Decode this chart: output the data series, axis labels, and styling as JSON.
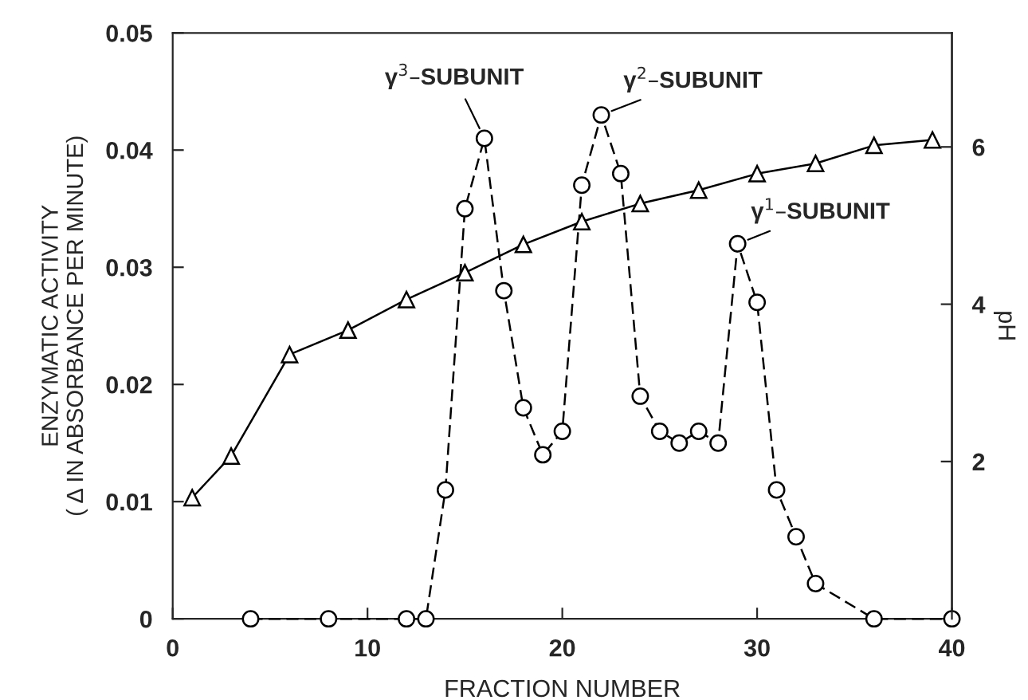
{
  "chart_data": {
    "type": "line",
    "xlabel": "FRACTION NUMBER",
    "ylabel": "ENZYMATIC ACTIVITY\n( Δ IN ABSORBANCE PER MINUTE)",
    "y2label": "pH",
    "xlim": [
      0,
      40
    ],
    "xticks": [
      0,
      10,
      20,
      30,
      40
    ],
    "ylim": [
      0,
      0.05
    ],
    "yticks": [
      0,
      0.01,
      0.02,
      0.03,
      0.04,
      0.05
    ],
    "y2lim": [
      0,
      7.45
    ],
    "y2ticks": [
      2,
      4,
      6
    ],
    "grid": false,
    "legend": false,
    "series": [
      {
        "color": "#000000",
        "marker": "circle",
        "line_style": "dashed",
        "x": [
          4,
          8,
          12,
          13,
          14,
          15,
          16,
          17,
          18,
          19,
          20,
          21,
          22,
          23,
          24,
          25,
          26,
          27,
          28,
          29,
          30,
          31,
          32,
          33,
          36,
          40
        ],
        "values": [
          0,
          0,
          0,
          0,
          0.011,
          0.035,
          0.041,
          0.028,
          0.018,
          0.014,
          0.016,
          0.037,
          0.043,
          0.038,
          0.019,
          0.016,
          0.015,
          0.016,
          0.015,
          0.032,
          0.027,
          0.011,
          0.007,
          0.003,
          0,
          0
        ]
      },
      {
        "color": "#000000",
        "marker": "triangle",
        "line_style": "solid",
        "axis": "y2",
        "x": [
          1,
          3,
          6,
          9,
          12,
          15,
          18,
          21,
          24,
          27,
          30,
          33,
          36,
          39
        ],
        "values": [
          1.54,
          2.07,
          3.36,
          3.67,
          4.06,
          4.4,
          4.76,
          5.05,
          5.28,
          5.45,
          5.66,
          5.79,
          6.02,
          6.09
        ]
      }
    ],
    "annotations": [
      {
        "text": "γ$^{3}$–SUBUNIT",
        "x": 16,
        "y": 0.041
      },
      {
        "text": "γ$^{2}$–SUBUNIT",
        "x": 22,
        "y": 0.043
      },
      {
        "text": "γ$^{1}$–SUBUNIT",
        "x": 29,
        "y": 0.032
      }
    ]
  }
}
